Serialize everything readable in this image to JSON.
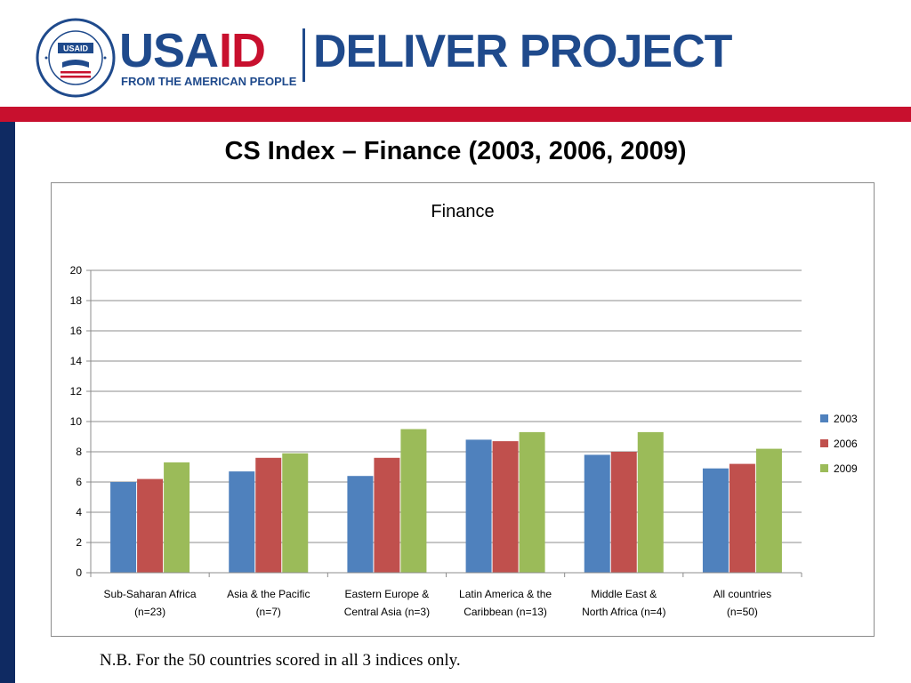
{
  "header": {
    "usa_text": "USA",
    "id_text": "ID",
    "tagline": "FROM THE AMERICAN PEOPLE",
    "project_name": "DELIVER PROJECT",
    "seal_text": "USAID",
    "colors": {
      "navy": "#1f4a8c",
      "red": "#c8102e"
    }
  },
  "slide": {
    "title": "CS Index – Finance (2003, 2006, 2009)",
    "footnote": "N.B. For the 50 countries scored in all 3 indices only."
  },
  "chart_data": {
    "type": "bar",
    "title": "Finance",
    "categories": [
      [
        "Sub-Saharan Africa",
        "(n=23)"
      ],
      [
        "Asia & the Pacific",
        "(n=7)"
      ],
      [
        "Eastern Europe &",
        "Central Asia (n=3)"
      ],
      [
        "Latin America & the",
        "Caribbean (n=13)"
      ],
      [
        "Middle East &",
        "North Africa (n=4)"
      ],
      [
        "All countries",
        "(n=50)"
      ]
    ],
    "series": [
      {
        "name": "2003",
        "color": "#4f81bd",
        "values": [
          6.0,
          6.7,
          6.4,
          8.8,
          7.8,
          6.9
        ]
      },
      {
        "name": "2006",
        "color": "#c0504d",
        "values": [
          6.2,
          7.6,
          7.6,
          8.7,
          8.0,
          7.2
        ]
      },
      {
        "name": "2009",
        "color": "#9bbb59",
        "values": [
          7.3,
          7.9,
          9.5,
          9.3,
          9.3,
          8.2
        ]
      }
    ],
    "ylim": [
      0,
      20
    ],
    "yticks": [
      0,
      2,
      4,
      6,
      8,
      10,
      12,
      14,
      16,
      18,
      20
    ],
    "grid": true,
    "legend_position": "right"
  }
}
